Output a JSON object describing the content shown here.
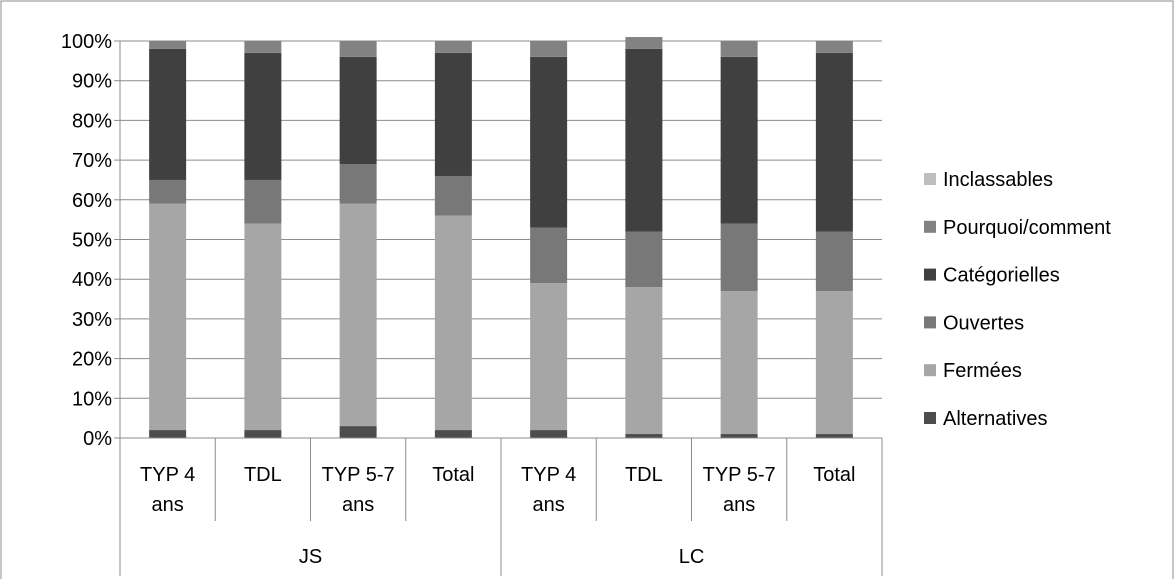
{
  "chart_data": {
    "type": "bar",
    "stacked": "percent",
    "title": "",
    "xlabel": "",
    "ylabel": "",
    "ylim": [
      0,
      100
    ],
    "y_ticks": [
      "0%",
      "10%",
      "20%",
      "30%",
      "40%",
      "50%",
      "60%",
      "70%",
      "80%",
      "90%",
      "100%"
    ],
    "grid": true,
    "legend_position": "right",
    "categories": [
      {
        "label_lines": [
          "TYP 4",
          "ans"
        ],
        "group": "JS"
      },
      {
        "label_lines": [
          "TDL"
        ],
        "group": "JS"
      },
      {
        "label_lines": [
          "TYP 5-7",
          "ans"
        ],
        "group": "JS"
      },
      {
        "label_lines": [
          "Total"
        ],
        "group": "JS"
      },
      {
        "label_lines": [
          "TYP 4",
          "ans"
        ],
        "group": "LC"
      },
      {
        "label_lines": [
          "TDL"
        ],
        "group": "LC"
      },
      {
        "label_lines": [
          "TYP 5-7",
          "ans"
        ],
        "group": "LC"
      },
      {
        "label_lines": [
          "Total"
        ],
        "group": "LC"
      }
    ],
    "groups": [
      "JS",
      "LC"
    ],
    "series": [
      {
        "name": "Alternatives",
        "color": "#4d4d4d",
        "values": [
          2,
          2,
          3,
          2,
          2,
          1,
          1,
          1
        ]
      },
      {
        "name": "Fermées",
        "color": "#a6a6a6",
        "values": [
          57,
          52,
          56,
          54,
          37,
          37,
          36,
          36
        ]
      },
      {
        "name": "Ouvertes",
        "color": "#787878",
        "values": [
          6,
          11,
          10,
          10,
          14,
          14,
          17,
          15
        ]
      },
      {
        "name": "Catégorielles",
        "color": "#404040",
        "values": [
          33,
          32,
          27,
          31,
          43,
          46,
          42,
          45
        ]
      },
      {
        "name": "Pourquoi/comment",
        "color": "#828282",
        "values": [
          2,
          3,
          4,
          3,
          4,
          3,
          4,
          3
        ]
      },
      {
        "name": "Inclassables",
        "color": "#bfbfbf",
        "values": [
          0,
          0,
          0,
          0,
          0,
          0,
          0,
          0
        ]
      }
    ]
  }
}
